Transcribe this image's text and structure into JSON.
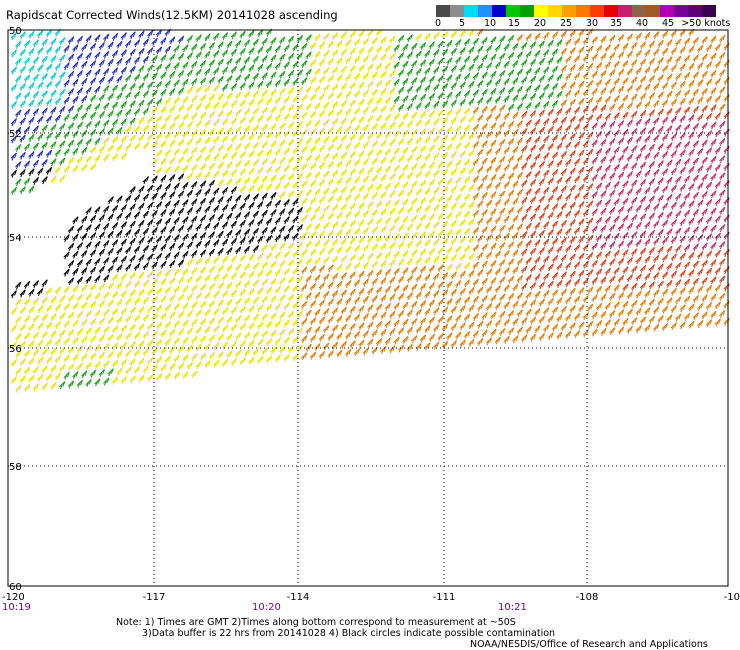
{
  "title": "Rapidscat Corrected Winds(12.5KM) 20141028 ascending",
  "legend": {
    "labels": [
      "0",
      "5",
      "10",
      "15",
      "20",
      "25",
      "30",
      "35",
      "40",
      "45",
      ">50 knots"
    ],
    "colors": [
      "#4a4a4a",
      "#8c8c8c",
      "#00dcf5",
      "#1e90ff",
      "#0000cd",
      "#00c800",
      "#00a000",
      "#ffff00",
      "#ffd700",
      "#ffa000",
      "#ff7800",
      "#ff3c00",
      "#e60000",
      "#c81e6e",
      "#8b6346",
      "#a05a28",
      "#b400b4",
      "#780096",
      "#5a0078",
      "#3c0050"
    ]
  },
  "axes": {
    "lat_labels": [
      "50",
      "52",
      "54",
      "56",
      "58",
      "60"
    ],
    "lon_labels": [
      "-120",
      "-117",
      "-114",
      "-111",
      "-108",
      "-10"
    ],
    "time_labels": [
      "10:19",
      "10:20",
      "10:21"
    ]
  },
  "notes": {
    "line1": "Note: 1) Times are GMT 2)Times along bottom correspond to measurement at ~50S",
    "line2": "3)Data buffer is 22 hrs from 20141028 4) Black circles indicate possible contamination",
    "credit": "NOAA/NESDIS/Office of Research and Applications"
  },
  "wind_colors": {
    "cyan": "#00c8d2",
    "blue": "#1e28c8",
    "green": "#14a014",
    "black": "#000000",
    "yellow": "#f0e000",
    "orange": "#e67800",
    "red": "#dc3c14",
    "magenta": "#c8285a"
  }
}
